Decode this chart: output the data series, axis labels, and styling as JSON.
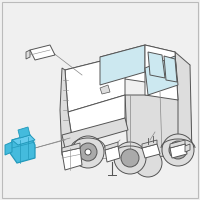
{
  "background_color": "#f0f0f0",
  "border_color": "#bbbbbb",
  "line_color": "#888888",
  "line_color_dark": "#555555",
  "highlight_fill": "#44bbdd",
  "highlight_edge": "#2299bb",
  "white": "#ffffff",
  "light_gray": "#dddddd",
  "mid_gray": "#aaaaaa",
  "window_blue": "#cce8f0",
  "figsize": [
    2.0,
    2.0
  ],
  "dpi": 100
}
